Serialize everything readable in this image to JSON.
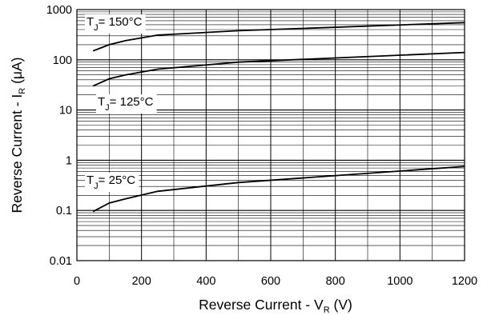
{
  "chart_data": {
    "type": "line",
    "xlabel": {
      "main": "Reverse Current - V",
      "sub": "R",
      "unit": " (V)"
    },
    "ylabel": {
      "main": "Reverse Current - I",
      "sub": "R",
      "unit": " (μA)"
    },
    "xlim": [
      0,
      1200
    ],
    "ylim": [
      0.01,
      1000
    ],
    "y_scale": "log",
    "grid": true,
    "x_ticks": [
      "0",
      "200",
      "400",
      "600",
      "800",
      "1000",
      "1200"
    ],
    "y_ticks": [
      "0.01",
      "0.1",
      "1",
      "10",
      "100",
      "1000"
    ],
    "series": [
      {
        "name": "TJ = 150°C",
        "label": {
          "prefix": "T",
          "sub": "J",
          "rest": "= 150°C"
        },
        "x": [
          50,
          100,
          150,
          250,
          500,
          1200
        ],
        "y": [
          150,
          200,
          240,
          310,
          380,
          550
        ]
      },
      {
        "name": "TJ = 125°C",
        "label": {
          "prefix": "T",
          "sub": "J",
          "rest": "= 125°C"
        },
        "x": [
          50,
          100,
          150,
          250,
          500,
          1200
        ],
        "y": [
          30,
          42,
          50,
          65,
          90,
          140
        ]
      },
      {
        "name": "TJ = 25°C",
        "label": {
          "prefix": "T",
          "sub": "J",
          "rest": "=   25°C"
        },
        "x": [
          50,
          100,
          150,
          250,
          500,
          1200
        ],
        "y": [
          0.095,
          0.14,
          0.17,
          0.24,
          0.36,
          0.75
        ]
      }
    ]
  }
}
